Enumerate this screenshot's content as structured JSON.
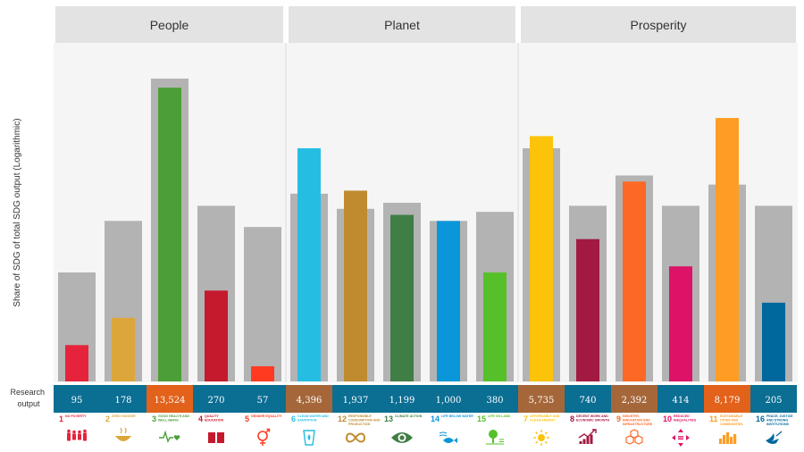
{
  "chart_data": {
    "type": "bar",
    "ylabel": "Share of SDG of total SDG output  (Logarithmic)",
    "row_label": "Research output",
    "groups": [
      {
        "name": "People",
        "start": 0,
        "end": 4
      },
      {
        "name": "Planet",
        "start": 5,
        "end": 9
      },
      {
        "name": "Prosperity",
        "start": 10,
        "end": 15
      }
    ],
    "categories": [
      {
        "num": "1",
        "name": "NO POVERTY",
        "icon": "family-icon",
        "color": "#e5243b",
        "output": "95",
        "outputBg": "#0b6e93",
        "grey": 0.36,
        "colored": 0.12
      },
      {
        "num": "2",
        "name": "ZERO HUNGER",
        "icon": "bowl-icon",
        "color": "#dda63a",
        "output": "178",
        "outputBg": "#0b6e93",
        "grey": 0.53,
        "colored": 0.21
      },
      {
        "num": "3",
        "name": "GOOD HEALTH AND WELL-BEING",
        "icon": "heartbeat-icon",
        "color": "#4c9f38",
        "output": "13,524",
        "outputBg": "#e2621b",
        "grey": 1.0,
        "colored": 0.97
      },
      {
        "num": "4",
        "name": "QUALITY EDUCATION",
        "icon": "book-icon",
        "color": "#c5192d",
        "output": "270",
        "outputBg": "#0b6e93",
        "grey": 0.58,
        "colored": 0.3
      },
      {
        "num": "5",
        "name": "GENDER EQUALITY",
        "icon": "gender-icon",
        "color": "#ff3a21",
        "output": "57",
        "outputBg": "#0b6e93",
        "grey": 0.51,
        "colored": 0.05
      },
      {
        "num": "6",
        "name": "CLEAN WATER AND SANITATION",
        "icon": "water-icon",
        "color": "#26bde2",
        "output": "4,396",
        "outputBg": "#a5673a",
        "grey": 0.62,
        "colored": 0.77
      },
      {
        "num": "12",
        "name": "RESPONSIBLE CONSUMPTION AND PRODUCTION",
        "icon": "infinity-icon",
        "color": "#bf8b2e",
        "output": "1,937",
        "outputBg": "#0b6e93",
        "grey": 0.57,
        "colored": 0.63
      },
      {
        "num": "13",
        "name": "CLIMATE ACTION",
        "icon": "eye-globe-icon",
        "color": "#3f7e44",
        "output": "1,199",
        "outputBg": "#0b6e93",
        "grey": 0.59,
        "colored": 0.55
      },
      {
        "num": "14",
        "name": "LIFE BELOW WATER",
        "icon": "fish-icon",
        "color": "#0a97d9",
        "output": "1,000",
        "outputBg": "#0b6e93",
        "grey": 0.53,
        "colored": 0.53
      },
      {
        "num": "15",
        "name": "LIFE ON LAND",
        "icon": "tree-icon",
        "color": "#56c02b",
        "output": "380",
        "outputBg": "#0b6e93",
        "grey": 0.56,
        "colored": 0.36
      },
      {
        "num": "7",
        "name": "AFFORDABLE AND CLEAN ENERGY",
        "icon": "sun-icon",
        "color": "#fcc30b",
        "output": "5,735",
        "outputBg": "#a5673a",
        "grey": 0.77,
        "colored": 0.81
      },
      {
        "num": "8",
        "name": "DECENT WORK AND ECONOMIC GROWTH",
        "icon": "growth-chart-icon",
        "color": "#a21942",
        "output": "740",
        "outputBg": "#0b6e93",
        "grey": 0.58,
        "colored": 0.47
      },
      {
        "num": "9",
        "name": "INDUSTRY, INNOVATION AND INFRASTRUCTURE",
        "icon": "cubes-icon",
        "color": "#fd6925",
        "output": "2,392",
        "outputBg": "#a5673a",
        "grey": 0.68,
        "colored": 0.66
      },
      {
        "num": "10",
        "name": "REDUCED INEQUALITIES",
        "icon": "inequality-icon",
        "color": "#dd1367",
        "output": "414",
        "outputBg": "#0b6e93",
        "grey": 0.58,
        "colored": 0.38
      },
      {
        "num": "11",
        "name": "SUSTAINABLE CITIES AND COMMUNITIES",
        "icon": "city-icon",
        "color": "#fd9d24",
        "output": "8,179",
        "outputBg": "#e2621b",
        "grey": 0.65,
        "colored": 0.87
      },
      {
        "num": "16",
        "name": "PEACE, JUSTICE AND STRONG INSTITUTIONS",
        "icon": "dove-icon",
        "color": "#00689d",
        "output": "205",
        "outputBg": "#0b6e93",
        "grey": 0.58,
        "colored": 0.26
      }
    ]
  }
}
